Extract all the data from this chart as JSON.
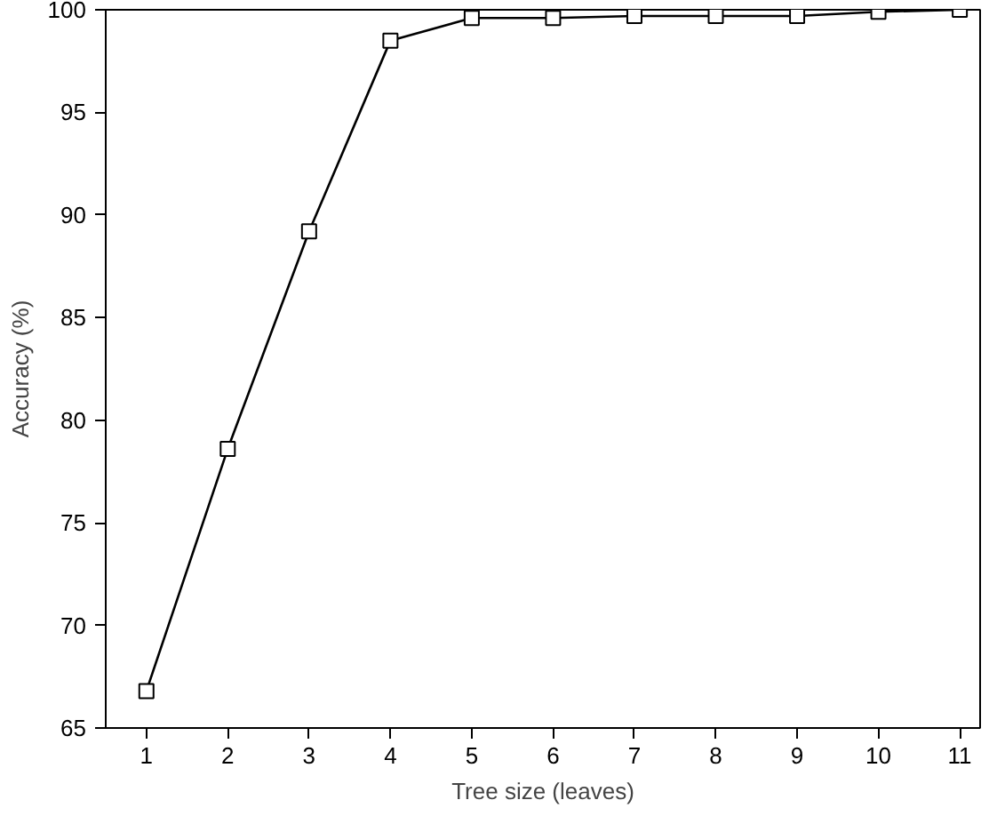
{
  "chart_data": {
    "type": "line",
    "xlabel": "Tree size (leaves)",
    "ylabel": "Accuracy (%)",
    "x": [
      1,
      2,
      3,
      4,
      5,
      6,
      7,
      8,
      9,
      10,
      11
    ],
    "series": [
      {
        "color": "#000000",
        "values": [
          66.8,
          78.6,
          89.2,
          98.5,
          99.6,
          99.6,
          99.7,
          99.7,
          99.7,
          99.9,
          100
        ]
      }
    ],
    "xlim": [
      0.5,
      11.25
    ],
    "xticks": [
      1,
      2,
      3,
      4,
      5,
      6,
      7,
      8,
      9,
      10,
      11
    ],
    "ylim": [
      65,
      100
    ],
    "yticks": [
      65,
      70,
      75,
      80,
      85,
      90,
      95,
      100
    ],
    "grid": false,
    "marker": "square",
    "line_style": "solid"
  }
}
